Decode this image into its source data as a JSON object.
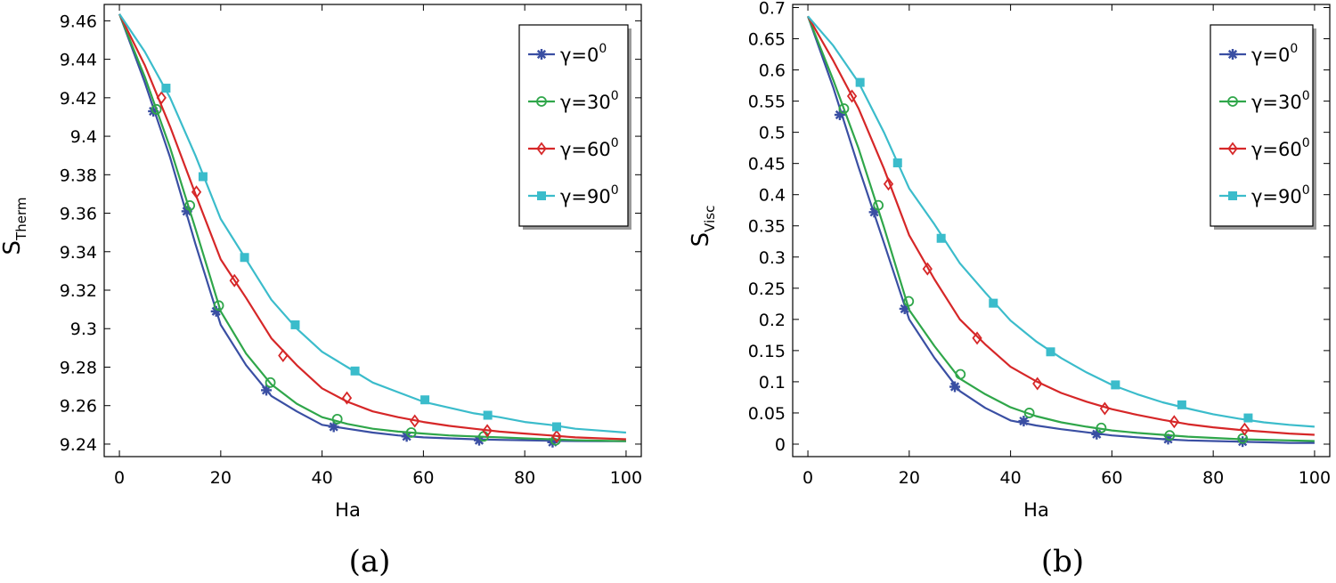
{
  "series_defs": [
    {
      "name": "γ=0",
      "sup": "0",
      "color": "#3a4fa3",
      "marker": "star"
    },
    {
      "name": "γ=30",
      "sup": "0",
      "color": "#2fa64a",
      "marker": "circle"
    },
    {
      "name": "γ=60",
      "sup": "0",
      "color": "#d62728",
      "marker": "diamond"
    },
    {
      "name": "γ=90",
      "sup": "0",
      "color": "#3bbccb",
      "marker": "square"
    }
  ],
  "chart_data": [
    {
      "type": "line",
      "caption": "(a)",
      "xlabel": "Ha",
      "ylabel_main": "S",
      "ylabel_sub": "Therm",
      "xlim": [
        -3,
        103
      ],
      "ylim": [
        9.2335,
        9.4685
      ],
      "xticks": [
        0,
        20,
        40,
        60,
        80,
        100
      ],
      "yticks": [
        9.24,
        9.26,
        9.28,
        9.3,
        9.32,
        9.34,
        9.36,
        9.38,
        9.4,
        9.42,
        9.44,
        9.46
      ],
      "ytick_labels": [
        "9.24",
        "9.26",
        "9.28",
        "9.3",
        "9.32",
        "9.34",
        "9.36",
        "9.38",
        "9.4",
        "9.42",
        "9.44",
        "9.46"
      ],
      "legend_position": "top-right",
      "series": [
        {
          "name": "γ=0",
          "x": [
            0,
            5,
            10,
            15,
            20,
            25,
            30,
            35,
            40,
            45,
            50,
            55,
            60,
            65,
            70,
            75,
            80,
            85,
            90,
            95,
            100
          ],
          "y": [
            9.4635,
            9.428,
            9.389,
            9.344,
            9.302,
            9.281,
            9.265,
            9.257,
            9.25,
            9.248,
            9.246,
            9.2445,
            9.2435,
            9.243,
            9.2425,
            9.2422,
            9.242,
            9.2418,
            9.2416,
            9.2415,
            9.2415
          ],
          "marker_x": [
            6.7,
            13.3,
            19.1,
            29,
            42.3,
            56.7,
            71,
            85.5
          ],
          "marker_y": [
            9.413,
            9.361,
            9.309,
            9.268,
            9.249,
            9.244,
            9.242,
            9.241
          ]
        },
        {
          "name": "γ=30",
          "x": [
            0,
            5,
            10,
            15,
            20,
            25,
            30,
            35,
            40,
            45,
            50,
            55,
            60,
            65,
            70,
            75,
            80,
            85,
            90,
            95,
            100
          ],
          "y": [
            9.4635,
            9.431,
            9.394,
            9.352,
            9.309,
            9.287,
            9.271,
            9.261,
            9.254,
            9.2505,
            9.248,
            9.2465,
            9.2455,
            9.2445,
            9.244,
            9.2435,
            9.243,
            9.2425,
            9.242,
            9.2418,
            9.2415
          ],
          "marker_x": [
            7.3,
            13.9,
            19.6,
            29.8,
            43,
            57.6,
            71.9,
            86.1
          ],
          "marker_y": [
            9.414,
            9.364,
            9.312,
            9.272,
            9.253,
            9.246,
            9.244,
            9.242
          ]
        },
        {
          "name": "γ=60",
          "x": [
            0,
            5,
            10,
            15,
            20,
            25,
            30,
            35,
            40,
            45,
            50,
            55,
            60,
            65,
            70,
            75,
            80,
            85,
            90,
            95,
            100
          ],
          "y": [
            9.4635,
            9.437,
            9.405,
            9.37,
            9.336,
            9.316,
            9.295,
            9.281,
            9.269,
            9.262,
            9.257,
            9.254,
            9.2515,
            9.2495,
            9.248,
            9.2465,
            9.2455,
            9.2445,
            9.2435,
            9.243,
            9.2425
          ],
          "marker_x": [
            8.3,
            15.2,
            22.7,
            32.3,
            44.9,
            58.3,
            72.6,
            86.3
          ],
          "marker_y": [
            9.42,
            9.371,
            9.325,
            9.286,
            9.264,
            9.252,
            9.247,
            9.244
          ]
        },
        {
          "name": "γ=90",
          "x": [
            0,
            5,
            10,
            15,
            20,
            25,
            30,
            35,
            40,
            45,
            50,
            55,
            60,
            65,
            70,
            75,
            80,
            85,
            90,
            95,
            100
          ],
          "y": [
            9.4635,
            9.444,
            9.42,
            9.39,
            9.357,
            9.336,
            9.315,
            9.3,
            9.288,
            9.28,
            9.272,
            9.267,
            9.262,
            9.259,
            9.256,
            9.254,
            9.2515,
            9.25,
            9.248,
            9.247,
            9.246
          ],
          "marker_x": [
            9.2,
            16.5,
            24.7,
            34.7,
            46.5,
            60.3,
            72.7,
            86.3
          ],
          "marker_y": [
            9.425,
            9.379,
            9.337,
            9.302,
            9.278,
            9.263,
            9.255,
            9.249
          ]
        }
      ]
    },
    {
      "type": "line",
      "caption": "(b)",
      "xlabel": "Ha",
      "ylabel_main": "S",
      "ylabel_sub": "Visc",
      "xlim": [
        -3,
        103
      ],
      "ylim": [
        -0.02,
        0.705
      ],
      "xticks": [
        0,
        20,
        40,
        60,
        80,
        100
      ],
      "yticks": [
        0,
        0.05,
        0.1,
        0.15,
        0.2,
        0.25,
        0.3,
        0.35,
        0.4,
        0.45,
        0.5,
        0.55,
        0.6,
        0.65,
        0.7
      ],
      "ytick_labels": [
        "0",
        "0.05",
        "0.1",
        "0.15",
        "0.2",
        "0.25",
        "0.3",
        "0.35",
        "0.4",
        "0.45",
        "0.5",
        "0.55",
        "0.6",
        "0.65",
        "0.7"
      ],
      "legend_position": "top-right",
      "series": [
        {
          "name": "γ=0",
          "x": [
            0,
            5,
            10,
            15,
            20,
            25,
            30,
            35,
            40,
            45,
            50,
            55,
            60,
            65,
            70,
            75,
            80,
            85,
            90,
            95,
            100
          ],
          "y": [
            0.686,
            0.572,
            0.444,
            0.323,
            0.2,
            0.138,
            0.085,
            0.058,
            0.038,
            0.03,
            0.024,
            0.019,
            0.014,
            0.011,
            0.008,
            0.006,
            0.005,
            0.004,
            0.003,
            0.002,
            0.002
          ],
          "marker_x": [
            6.3,
            13.1,
            19.1,
            29,
            42.6,
            57,
            71.1,
            85.8
          ],
          "marker_y": [
            0.528,
            0.372,
            0.217,
            0.092,
            0.037,
            0.016,
            0.008,
            0.004
          ]
        },
        {
          "name": "γ=30",
          "x": [
            0,
            5,
            10,
            15,
            20,
            25,
            30,
            35,
            40,
            45,
            50,
            55,
            60,
            65,
            70,
            75,
            80,
            85,
            90,
            95,
            100
          ],
          "y": [
            0.686,
            0.584,
            0.474,
            0.348,
            0.215,
            0.157,
            0.105,
            0.08,
            0.059,
            0.045,
            0.035,
            0.028,
            0.022,
            0.018,
            0.015,
            0.012,
            0.01,
            0.008,
            0.007,
            0.006,
            0.005
          ],
          "marker_x": [
            7.1,
            13.9,
            19.9,
            30.1,
            43.7,
            57.9,
            71.4,
            85.8
          ],
          "marker_y": [
            0.538,
            0.383,
            0.229,
            0.112,
            0.05,
            0.026,
            0.014,
            0.009
          ]
        },
        {
          "name": "γ=60",
          "x": [
            0,
            5,
            10,
            15,
            20,
            25,
            30,
            35,
            40,
            45,
            50,
            55,
            60,
            65,
            70,
            75,
            80,
            85,
            90,
            95,
            100
          ],
          "y": [
            0.686,
            0.615,
            0.538,
            0.442,
            0.335,
            0.264,
            0.2,
            0.16,
            0.124,
            0.101,
            0.082,
            0.068,
            0.056,
            0.047,
            0.039,
            0.032,
            0.027,
            0.023,
            0.02,
            0.017,
            0.015
          ],
          "marker_x": [
            8.7,
            15.9,
            23.6,
            33.4,
            45.3,
            58.6,
            72.3,
            86.2
          ],
          "marker_y": [
            0.558,
            0.417,
            0.281,
            0.17,
            0.097,
            0.057,
            0.036,
            0.024
          ]
        },
        {
          "name": "γ=90",
          "x": [
            0,
            5,
            10,
            15,
            20,
            25,
            30,
            35,
            40,
            45,
            50,
            55,
            60,
            65,
            70,
            75,
            80,
            85,
            90,
            95,
            100
          ],
          "y": [
            0.686,
            0.639,
            0.58,
            0.5,
            0.41,
            0.352,
            0.29,
            0.243,
            0.198,
            0.165,
            0.138,
            0.115,
            0.095,
            0.08,
            0.067,
            0.057,
            0.048,
            0.041,
            0.035,
            0.031,
            0.028
          ],
          "marker_x": [
            10.3,
            17.7,
            26.3,
            36.6,
            47.9,
            60.7,
            73.8,
            86.9
          ],
          "marker_y": [
            0.58,
            0.451,
            0.33,
            0.226,
            0.148,
            0.095,
            0.063,
            0.042
          ]
        }
      ]
    }
  ]
}
